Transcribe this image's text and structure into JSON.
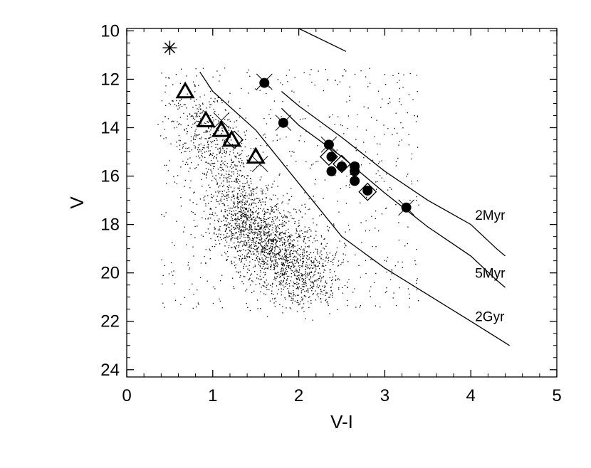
{
  "chart_data": {
    "type": "scatter",
    "title": "",
    "xlabel": "V-I",
    "ylabel": "V",
    "xlim": [
      0,
      5
    ],
    "ylim": [
      24.3,
      9.9
    ],
    "y_inverted": true,
    "grid": false,
    "x_ticks": [
      0,
      1,
      2,
      3,
      4,
      5
    ],
    "x_tick_labels": [
      "0",
      "1",
      "2",
      "3",
      "4",
      "5"
    ],
    "y_ticks": [
      10,
      12,
      14,
      16,
      18,
      20,
      22,
      24
    ],
    "y_tick_labels": [
      "10",
      "12",
      "14",
      "16",
      "18",
      "20",
      "22",
      "24"
    ],
    "colors": {
      "ink": "#000000",
      "background": "#ffffff"
    },
    "isochrones": [
      {
        "label": "2Myr",
        "label_at": [
          4.05,
          17.8
        ],
        "points": [
          [
            1.8,
            12.5
          ],
          [
            2.0,
            13.1
          ],
          [
            2.5,
            14.4
          ],
          [
            3.0,
            15.8
          ],
          [
            3.5,
            17.0
          ],
          [
            4.0,
            18.0
          ],
          [
            4.3,
            19.0
          ],
          [
            4.4,
            19.3
          ]
        ]
      },
      {
        "label": "5Myr",
        "label_at": [
          4.05,
          20.2
        ],
        "points": [
          [
            1.8,
            13.2
          ],
          [
            2.0,
            13.9
          ],
          [
            2.5,
            15.2
          ],
          [
            3.0,
            16.7
          ],
          [
            3.5,
            18.1
          ],
          [
            4.0,
            19.3
          ],
          [
            4.3,
            20.3
          ],
          [
            4.4,
            20.6
          ]
        ]
      },
      {
        "label": "2Gyr",
        "label_at": [
          4.05,
          22.0
        ],
        "points": [
          [
            0.85,
            11.7
          ],
          [
            1.0,
            12.5
          ],
          [
            1.5,
            14.1
          ],
          [
            2.0,
            16.3
          ],
          [
            2.5,
            18.5
          ],
          [
            3.0,
            19.8
          ],
          [
            3.5,
            20.9
          ],
          [
            4.0,
            22.0
          ],
          [
            4.45,
            23.0
          ]
        ]
      },
      {
        "label": "",
        "label_at": null,
        "points": [
          [
            2.0,
            9.9
          ],
          [
            2.55,
            10.85
          ]
        ]
      }
    ],
    "asterisk_points": [
      [
        0.5,
        10.7
      ]
    ],
    "triangle_points": [
      [
        0.68,
        12.5
      ],
      [
        0.92,
        13.7
      ],
      [
        1.1,
        14.1
      ],
      [
        1.22,
        14.5
      ],
      [
        1.5,
        15.2
      ]
    ],
    "cross_points": [
      [
        1.1,
        13.7
      ],
      [
        1.6,
        12.1
      ],
      [
        1.82,
        13.8
      ],
      [
        2.35,
        14.7
      ],
      [
        1.55,
        15.5
      ],
      [
        3.25,
        17.3
      ]
    ],
    "filled_circle_points": [
      [
        1.6,
        12.15
      ],
      [
        1.82,
        13.8
      ],
      [
        2.35,
        14.7
      ],
      [
        2.38,
        15.2
      ],
      [
        2.38,
        15.8
      ],
      [
        2.5,
        15.6
      ],
      [
        2.65,
        15.6
      ],
      [
        2.65,
        15.8
      ],
      [
        2.65,
        16.2
      ],
      [
        2.8,
        16.6
      ],
      [
        3.25,
        17.3
      ]
    ],
    "diamond_points": [
      [
        1.25,
        14.5
      ],
      [
        2.35,
        15.2
      ],
      [
        2.5,
        15.5
      ],
      [
        2.8,
        16.65
      ]
    ],
    "field_star_cloud": {
      "approx_count": 3000,
      "note_of_shape": "dense red-giant / main-sequence clump",
      "core_center": [
        1.5,
        19.2
      ],
      "upper_branch_start": [
        0.8,
        13.5
      ]
    }
  }
}
